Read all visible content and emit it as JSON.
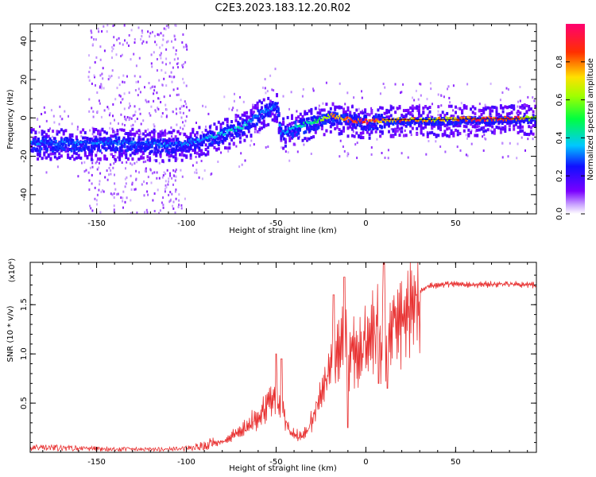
{
  "figure_title": "C2E3.2023.183.12.20.R02",
  "colorbar": {
    "label": "Normalized spectral amplitude",
    "ticks": [
      0.0,
      0.2,
      0.4,
      0.6,
      0.8
    ],
    "tick_labels": [
      "0.0",
      "0.2",
      "0.4",
      "0.6",
      "0.8"
    ]
  },
  "chart_data": [
    {
      "type": "heatmap",
      "xlabel": "Height of straight line (km)",
      "ylabel": "Frequency (Hz)",
      "xlim": [
        -187,
        95
      ],
      "ylim": [
        -50,
        49
      ],
      "xticks": [
        -150,
        -100,
        -50,
        0,
        50
      ],
      "yticks": [
        -40,
        -20,
        0,
        20,
        40
      ],
      "colormap": "rainbow (purple-blue-cyan-green-yellow-red-magenta)",
      "ridge": {
        "x": [
          -187,
          -160,
          -130,
          -110,
          -100,
          -90,
          -80,
          -70,
          -60,
          -50,
          -48,
          -40,
          -30,
          -20,
          -10,
          0,
          10,
          20,
          40,
          60,
          80,
          95
        ],
        "y": [
          -13,
          -13,
          -13,
          -14,
          -13,
          -11,
          -8,
          -5,
          2,
          7,
          -8,
          -5,
          -2,
          1,
          -1,
          -2,
          -1,
          -1,
          -1,
          -0.5,
          -0.5,
          0
        ],
        "amplitude": [
          0.3,
          0.3,
          0.3,
          0.3,
          0.3,
          0.35,
          0.4,
          0.4,
          0.3,
          0.3,
          0.3,
          0.4,
          0.45,
          0.7,
          0.85,
          0.9,
          0.7,
          0.8,
          0.7,
          0.85,
          0.9,
          0.5
        ]
      },
      "grid": false
    },
    {
      "type": "line",
      "xlabel": "Height of straight line (km)",
      "ylabel": "SNR (10 * v/v)",
      "y_multiplier_label": "(x10⁴)",
      "xlim": [
        -187,
        95
      ],
      "ylim": [
        0.0,
        1.93
      ],
      "xticks": [
        -150,
        -100,
        -50,
        0,
        50
      ],
      "yticks": [
        0.5,
        1.0,
        1.5
      ],
      "ytick_labels": [
        "0.5",
        "1.0",
        "1.5"
      ],
      "series_color": "#e83030",
      "envelope": {
        "x": [
          -187,
          -160,
          -130,
          -110,
          -100,
          -90,
          -80,
          -72,
          -65,
          -58,
          -52,
          -47,
          -42,
          -37,
          -32,
          -28,
          -23,
          -20,
          -17,
          -13,
          -10,
          -5,
          0,
          5,
          8,
          10,
          12,
          15,
          20,
          25,
          30,
          35,
          40,
          50,
          60,
          70,
          80,
          90,
          95
        ],
        "y": [
          0.05,
          0.04,
          0.03,
          0.03,
          0.04,
          0.07,
          0.13,
          0.2,
          0.3,
          0.45,
          0.65,
          0.55,
          0.22,
          0.18,
          0.25,
          0.5,
          0.8,
          1.0,
          0.95,
          1.2,
          1.1,
          1.05,
          1.2,
          1.35,
          1.3,
          1.4,
          1.35,
          1.45,
          1.52,
          1.6,
          1.65,
          1.7,
          1.71,
          1.72,
          1.71,
          1.72,
          1.72,
          1.71,
          1.7
        ]
      },
      "spikes": [
        {
          "x": -50,
          "y": 1.0
        },
        {
          "x": -47,
          "y": 0.95
        },
        {
          "x": -18,
          "y": 1.6
        },
        {
          "x": -12,
          "y": 1.78
        },
        {
          "x": -10,
          "y": 0.25
        },
        {
          "x": 7,
          "y": 0.7
        },
        {
          "x": 10,
          "y": 1.93
        },
        {
          "x": 12,
          "y": 0.65
        }
      ],
      "grid": false
    }
  ]
}
